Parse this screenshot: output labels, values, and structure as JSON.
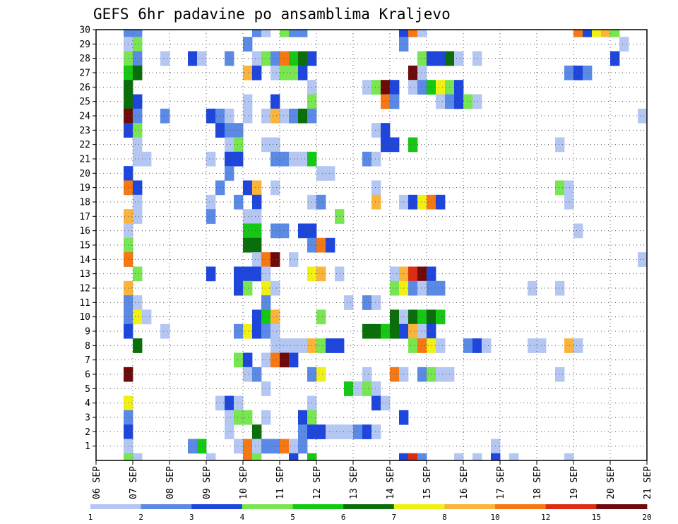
{
  "chart_data": {
    "type": "heatmap",
    "title": "GEFS 6hr padavine po ansamblima Kraljevo",
    "y_ticks": [
      "1",
      "2",
      "3",
      "4",
      "5",
      "6",
      "7",
      "8",
      "9",
      "10",
      "11",
      "12",
      "13",
      "14",
      "15",
      "16",
      "17",
      "18",
      "19",
      "20",
      "21",
      "22",
      "23",
      "24",
      "25",
      "26",
      "27",
      "28",
      "29",
      "30"
    ],
    "x_ticks": [
      "06 SEP",
      "07 SEP",
      "08 SEP",
      "09 SEP",
      "10 SEP",
      "11 SEP",
      "12 SEP",
      "13 SEP",
      "14 SEP",
      "15 SEP",
      "16 SEP",
      "17 SEP",
      "18 SEP",
      "19 SEP",
      "20 SEP",
      "21 SEP"
    ],
    "x_range_days": [
      6,
      21
    ],
    "y_range": [
      0,
      30
    ],
    "cell_hours": 6,
    "grid": "dotted",
    "legend_position": "bottom",
    "legend_labels": [
      "1",
      "2",
      "3",
      "4",
      "5",
      "6",
      "7",
      "8",
      "10",
      "12",
      "15",
      "20"
    ],
    "legend_colors": [
      "#b4c6f2",
      "#5a8ae6",
      "#1e46dc",
      "#78e650",
      "#14c814",
      "#0a6e0a",
      "#f0f014",
      "#fab43c",
      "#f57814",
      "#dc2d14",
      "#6e0a0a"
    ],
    "cells": [
      [
        30,
        6.75,
        2
      ],
      [
        30,
        7.0,
        2
      ],
      [
        30,
        10.25,
        2
      ],
      [
        30,
        10.5,
        1
      ],
      [
        30,
        11.0,
        4
      ],
      [
        30,
        11.25,
        2
      ],
      [
        30,
        11.5,
        2
      ],
      [
        30,
        14.25,
        3
      ],
      [
        30,
        14.5,
        9
      ],
      [
        30,
        14.75,
        1
      ],
      [
        30,
        19.0,
        9
      ],
      [
        30,
        19.25,
        3
      ],
      [
        30,
        19.5,
        7
      ],
      [
        30,
        19.75,
        8
      ],
      [
        30,
        20.0,
        4
      ],
      [
        29,
        6.75,
        1
      ],
      [
        29,
        7.0,
        4
      ],
      [
        29,
        10.0,
        2
      ],
      [
        29,
        14.25,
        2
      ],
      [
        29,
        20.25,
        1
      ],
      [
        28,
        6.75,
        4
      ],
      [
        28,
        7.0,
        2
      ],
      [
        28,
        7.75,
        1
      ],
      [
        28,
        8.5,
        3
      ],
      [
        28,
        8.75,
        1
      ],
      [
        28,
        9.5,
        2
      ],
      [
        28,
        10.25,
        1
      ],
      [
        28,
        10.5,
        4
      ],
      [
        28,
        10.75,
        2
      ],
      [
        28,
        11.0,
        9
      ],
      [
        28,
        11.25,
        5
      ],
      [
        28,
        11.5,
        6
      ],
      [
        28,
        11.75,
        3
      ],
      [
        28,
        14.75,
        4
      ],
      [
        28,
        15.0,
        3
      ],
      [
        28,
        15.25,
        3
      ],
      [
        28,
        15.5,
        6
      ],
      [
        28,
        15.75,
        1
      ],
      [
        28,
        16.25,
        1
      ],
      [
        28,
        20.0,
        3
      ],
      [
        27,
        6.75,
        5
      ],
      [
        27,
        7.0,
        6
      ],
      [
        27,
        10.0,
        8
      ],
      [
        27,
        10.25,
        3
      ],
      [
        27,
        10.75,
        1
      ],
      [
        27,
        11.0,
        4
      ],
      [
        27,
        11.25,
        4
      ],
      [
        27,
        11.5,
        3
      ],
      [
        27,
        14.5,
        11
      ],
      [
        27,
        14.75,
        1
      ],
      [
        27,
        18.75,
        2
      ],
      [
        27,
        19.0,
        3
      ],
      [
        27,
        19.25,
        2
      ],
      [
        26,
        6.75,
        6
      ],
      [
        26,
        11.75,
        1
      ],
      [
        26,
        13.25,
        1
      ],
      [
        26,
        13.5,
        4
      ],
      [
        26,
        13.75,
        11
      ],
      [
        26,
        14.0,
        3
      ],
      [
        26,
        14.5,
        1
      ],
      [
        26,
        14.75,
        2
      ],
      [
        26,
        15.0,
        5
      ],
      [
        26,
        15.25,
        7
      ],
      [
        26,
        15.5,
        4
      ],
      [
        26,
        15.75,
        3
      ],
      [
        25,
        6.75,
        6
      ],
      [
        25,
        7.0,
        3
      ],
      [
        25,
        10.0,
        1
      ],
      [
        25,
        10.75,
        3
      ],
      [
        25,
        11.75,
        4
      ],
      [
        25,
        13.75,
        9
      ],
      [
        25,
        14.0,
        2
      ],
      [
        25,
        15.25,
        1
      ],
      [
        25,
        15.5,
        2
      ],
      [
        25,
        15.75,
        3
      ],
      [
        25,
        16.0,
        4
      ],
      [
        25,
        16.25,
        1
      ],
      [
        24,
        6.75,
        11
      ],
      [
        24,
        7.0,
        2
      ],
      [
        24,
        7.75,
        2
      ],
      [
        24,
        9.0,
        3
      ],
      [
        24,
        9.25,
        2
      ],
      [
        24,
        9.5,
        1
      ],
      [
        24,
        10.0,
        1
      ],
      [
        24,
        10.5,
        1
      ],
      [
        24,
        10.75,
        8
      ],
      [
        24,
        11.0,
        1
      ],
      [
        24,
        11.25,
        2
      ],
      [
        24,
        11.5,
        6
      ],
      [
        24,
        11.75,
        2
      ],
      [
        24,
        20.75,
        1
      ],
      [
        23,
        6.75,
        3
      ],
      [
        23,
        7.0,
        4
      ],
      [
        23,
        9.25,
        3
      ],
      [
        23,
        9.5,
        2
      ],
      [
        23,
        9.75,
        2
      ],
      [
        23,
        13.5,
        1
      ],
      [
        23,
        13.75,
        3
      ],
      [
        22,
        7.0,
        1
      ],
      [
        22,
        9.5,
        1
      ],
      [
        22,
        9.75,
        4
      ],
      [
        22,
        10.5,
        1
      ],
      [
        22,
        10.75,
        1
      ],
      [
        22,
        13.75,
        3
      ],
      [
        22,
        14.0,
        3
      ],
      [
        22,
        14.5,
        5
      ],
      [
        22,
        18.5,
        1
      ],
      [
        21,
        7.0,
        1
      ],
      [
        21,
        7.25,
        1
      ],
      [
        21,
        9.0,
        1
      ],
      [
        21,
        9.5,
        3
      ],
      [
        21,
        9.75,
        3
      ],
      [
        21,
        10.75,
        2
      ],
      [
        21,
        11.0,
        2
      ],
      [
        21,
        11.25,
        1
      ],
      [
        21,
        11.5,
        1
      ],
      [
        21,
        11.75,
        5
      ],
      [
        21,
        13.25,
        2
      ],
      [
        21,
        13.5,
        1
      ],
      [
        20,
        6.75,
        3
      ],
      [
        20,
        9.5,
        2
      ],
      [
        20,
        12.0,
        1
      ],
      [
        20,
        12.25,
        1
      ],
      [
        19,
        6.75,
        9
      ],
      [
        19,
        7.0,
        3
      ],
      [
        19,
        9.25,
        2
      ],
      [
        19,
        10.0,
        3
      ],
      [
        19,
        10.25,
        8
      ],
      [
        19,
        10.75,
        1
      ],
      [
        19,
        13.5,
        1
      ],
      [
        19,
        18.5,
        4
      ],
      [
        19,
        18.75,
        1
      ],
      [
        18,
        7.0,
        1
      ],
      [
        18,
        9.0,
        1
      ],
      [
        18,
        9.75,
        2
      ],
      [
        18,
        10.25,
        3
      ],
      [
        18,
        11.75,
        1
      ],
      [
        18,
        12.0,
        2
      ],
      [
        18,
        13.5,
        8
      ],
      [
        18,
        14.25,
        1
      ],
      [
        18,
        14.5,
        3
      ],
      [
        18,
        14.75,
        7
      ],
      [
        18,
        15.0,
        9
      ],
      [
        18,
        15.25,
        3
      ],
      [
        18,
        18.75,
        1
      ],
      [
        17,
        6.75,
        8
      ],
      [
        17,
        7.0,
        1
      ],
      [
        17,
        9.0,
        2
      ],
      [
        17,
        10.0,
        1
      ],
      [
        17,
        10.25,
        1
      ],
      [
        17,
        12.5,
        4
      ],
      [
        16,
        6.75,
        1
      ],
      [
        16,
        10.0,
        5
      ],
      [
        16,
        10.25,
        5
      ],
      [
        16,
        10.75,
        2
      ],
      [
        16,
        11.0,
        2
      ],
      [
        16,
        11.5,
        3
      ],
      [
        16,
        11.75,
        3
      ],
      [
        16,
        19.0,
        1
      ],
      [
        15,
        6.75,
        4
      ],
      [
        15,
        10.0,
        6
      ],
      [
        15,
        10.25,
        6
      ],
      [
        15,
        11.75,
        2
      ],
      [
        15,
        12.0,
        9
      ],
      [
        15,
        12.25,
        3
      ],
      [
        14,
        6.75,
        9
      ],
      [
        14,
        10.25,
        1
      ],
      [
        14,
        10.5,
        9
      ],
      [
        14,
        10.75,
        11
      ],
      [
        14,
        11.25,
        1
      ],
      [
        14,
        20.75,
        1
      ],
      [
        13,
        7.0,
        4
      ],
      [
        13,
        9.0,
        3
      ],
      [
        13,
        9.75,
        3
      ],
      [
        13,
        10.0,
        3
      ],
      [
        13,
        10.25,
        3
      ],
      [
        13,
        10.5,
        1
      ],
      [
        13,
        11.75,
        7
      ],
      [
        13,
        12.0,
        8
      ],
      [
        13,
        12.5,
        1
      ],
      [
        13,
        14.0,
        1
      ],
      [
        13,
        14.25,
        8
      ],
      [
        13,
        14.5,
        10
      ],
      [
        13,
        14.75,
        11
      ],
      [
        13,
        15.0,
        3
      ],
      [
        12,
        6.75,
        8
      ],
      [
        12,
        9.75,
        3
      ],
      [
        12,
        10.0,
        4
      ],
      [
        12,
        10.5,
        7
      ],
      [
        12,
        10.75,
        1
      ],
      [
        12,
        14.0,
        4
      ],
      [
        12,
        14.25,
        7
      ],
      [
        12,
        14.5,
        2
      ],
      [
        12,
        14.75,
        1
      ],
      [
        12,
        15.0,
        2
      ],
      [
        12,
        15.25,
        2
      ],
      [
        12,
        17.75,
        1
      ],
      [
        12,
        18.5,
        1
      ],
      [
        11,
        6.75,
        2
      ],
      [
        11,
        7.0,
        1
      ],
      [
        11,
        10.5,
        2
      ],
      [
        11,
        12.75,
        1
      ],
      [
        11,
        13.25,
        2
      ],
      [
        11,
        13.5,
        1
      ],
      [
        10,
        6.75,
        2
      ],
      [
        10,
        7.0,
        7
      ],
      [
        10,
        7.25,
        1
      ],
      [
        10,
        10.25,
        3
      ],
      [
        10,
        10.5,
        5
      ],
      [
        10,
        10.75,
        8
      ],
      [
        10,
        12.0,
        4
      ],
      [
        10,
        14.0,
        6
      ],
      [
        10,
        14.25,
        1
      ],
      [
        10,
        14.5,
        6
      ],
      [
        10,
        14.75,
        5
      ],
      [
        10,
        15.0,
        6
      ],
      [
        10,
        15.25,
        5
      ],
      [
        9,
        6.75,
        3
      ],
      [
        9,
        7.75,
        1
      ],
      [
        9,
        9.75,
        2
      ],
      [
        9,
        10.0,
        7
      ],
      [
        9,
        10.25,
        3
      ],
      [
        9,
        10.5,
        2
      ],
      [
        9,
        10.75,
        1
      ],
      [
        9,
        13.25,
        6
      ],
      [
        9,
        13.5,
        6
      ],
      [
        9,
        13.75,
        5
      ],
      [
        9,
        14.0,
        6
      ],
      [
        9,
        14.25,
        3
      ],
      [
        9,
        14.5,
        8
      ],
      [
        9,
        14.75,
        1
      ],
      [
        9,
        15.0,
        3
      ],
      [
        8,
        7.0,
        6
      ],
      [
        8,
        10.75,
        1
      ],
      [
        8,
        11.0,
        1
      ],
      [
        8,
        11.25,
        1
      ],
      [
        8,
        11.5,
        1
      ],
      [
        8,
        11.75,
        8
      ],
      [
        8,
        12.0,
        4
      ],
      [
        8,
        12.25,
        3
      ],
      [
        8,
        12.5,
        3
      ],
      [
        8,
        14.5,
        4
      ],
      [
        8,
        14.75,
        9
      ],
      [
        8,
        15.0,
        7
      ],
      [
        8,
        15.25,
        1
      ],
      [
        8,
        16.0,
        2
      ],
      [
        8,
        16.25,
        3
      ],
      [
        8,
        16.5,
        1
      ],
      [
        8,
        17.75,
        1
      ],
      [
        8,
        18.0,
        1
      ],
      [
        8,
        18.75,
        8
      ],
      [
        8,
        19.0,
        1
      ],
      [
        7,
        9.75,
        4
      ],
      [
        7,
        10.0,
        3
      ],
      [
        7,
        10.5,
        1
      ],
      [
        7,
        10.75,
        9
      ],
      [
        7,
        11.0,
        11
      ],
      [
        7,
        11.25,
        3
      ],
      [
        6,
        6.75,
        11
      ],
      [
        6,
        10.0,
        1
      ],
      [
        6,
        10.25,
        2
      ],
      [
        6,
        11.75,
        2
      ],
      [
        6,
        12.0,
        7
      ],
      [
        6,
        13.25,
        1
      ],
      [
        6,
        14.0,
        9
      ],
      [
        6,
        14.25,
        1
      ],
      [
        6,
        14.75,
        2
      ],
      [
        6,
        15.0,
        4
      ],
      [
        6,
        15.25,
        1
      ],
      [
        6,
        15.5,
        1
      ],
      [
        6,
        18.5,
        1
      ],
      [
        5,
        10.5,
        1
      ],
      [
        5,
        12.75,
        5
      ],
      [
        5,
        13.0,
        1
      ],
      [
        5,
        13.25,
        4
      ],
      [
        5,
        13.5,
        1
      ],
      [
        4,
        6.75,
        7
      ],
      [
        4,
        9.25,
        1
      ],
      [
        4,
        9.5,
        3
      ],
      [
        4,
        9.75,
        1
      ],
      [
        4,
        11.75,
        1
      ],
      [
        4,
        13.5,
        3
      ],
      [
        4,
        13.75,
        1
      ],
      [
        3,
        6.75,
        2
      ],
      [
        3,
        9.5,
        1
      ],
      [
        3,
        9.75,
        4
      ],
      [
        3,
        10.0,
        4
      ],
      [
        3,
        10.5,
        1
      ],
      [
        3,
        11.5,
        3
      ],
      [
        3,
        11.75,
        4
      ],
      [
        3,
        14.25,
        3
      ],
      [
        2,
        6.75,
        3
      ],
      [
        2,
        9.5,
        1
      ],
      [
        2,
        10.25,
        6
      ],
      [
        2,
        11.5,
        2
      ],
      [
        2,
        11.75,
        3
      ],
      [
        2,
        12.0,
        3
      ],
      [
        2,
        12.25,
        1
      ],
      [
        2,
        12.5,
        1
      ],
      [
        2,
        12.75,
        1
      ],
      [
        2,
        13.0,
        2
      ],
      [
        2,
        13.25,
        3
      ],
      [
        2,
        13.5,
        1
      ],
      [
        1,
        6.75,
        1
      ],
      [
        1,
        8.5,
        2
      ],
      [
        1,
        8.75,
        5
      ],
      [
        1,
        9.75,
        1
      ],
      [
        1,
        10.0,
        9
      ],
      [
        1,
        10.25,
        1
      ],
      [
        1,
        10.5,
        2
      ],
      [
        1,
        10.75,
        2
      ],
      [
        1,
        11.0,
        9
      ],
      [
        1,
        11.25,
        1
      ],
      [
        1,
        11.5,
        2
      ],
      [
        1,
        16.75,
        1
      ],
      [
        0,
        6.75,
        4
      ],
      [
        0,
        7.0,
        1
      ],
      [
        0,
        9.0,
        1
      ],
      [
        0,
        10.0,
        9
      ],
      [
        0,
        10.25,
        4
      ],
      [
        0,
        11.25,
        3
      ],
      [
        0,
        11.75,
        5
      ],
      [
        0,
        14.25,
        3
      ],
      [
        0,
        14.5,
        10
      ],
      [
        0,
        14.75,
        2
      ],
      [
        0,
        15.75,
        1
      ],
      [
        0,
        16.25,
        1
      ],
      [
        0,
        16.75,
        3
      ],
      [
        0,
        17.25,
        1
      ],
      [
        0,
        18.75,
        1
      ]
    ]
  }
}
